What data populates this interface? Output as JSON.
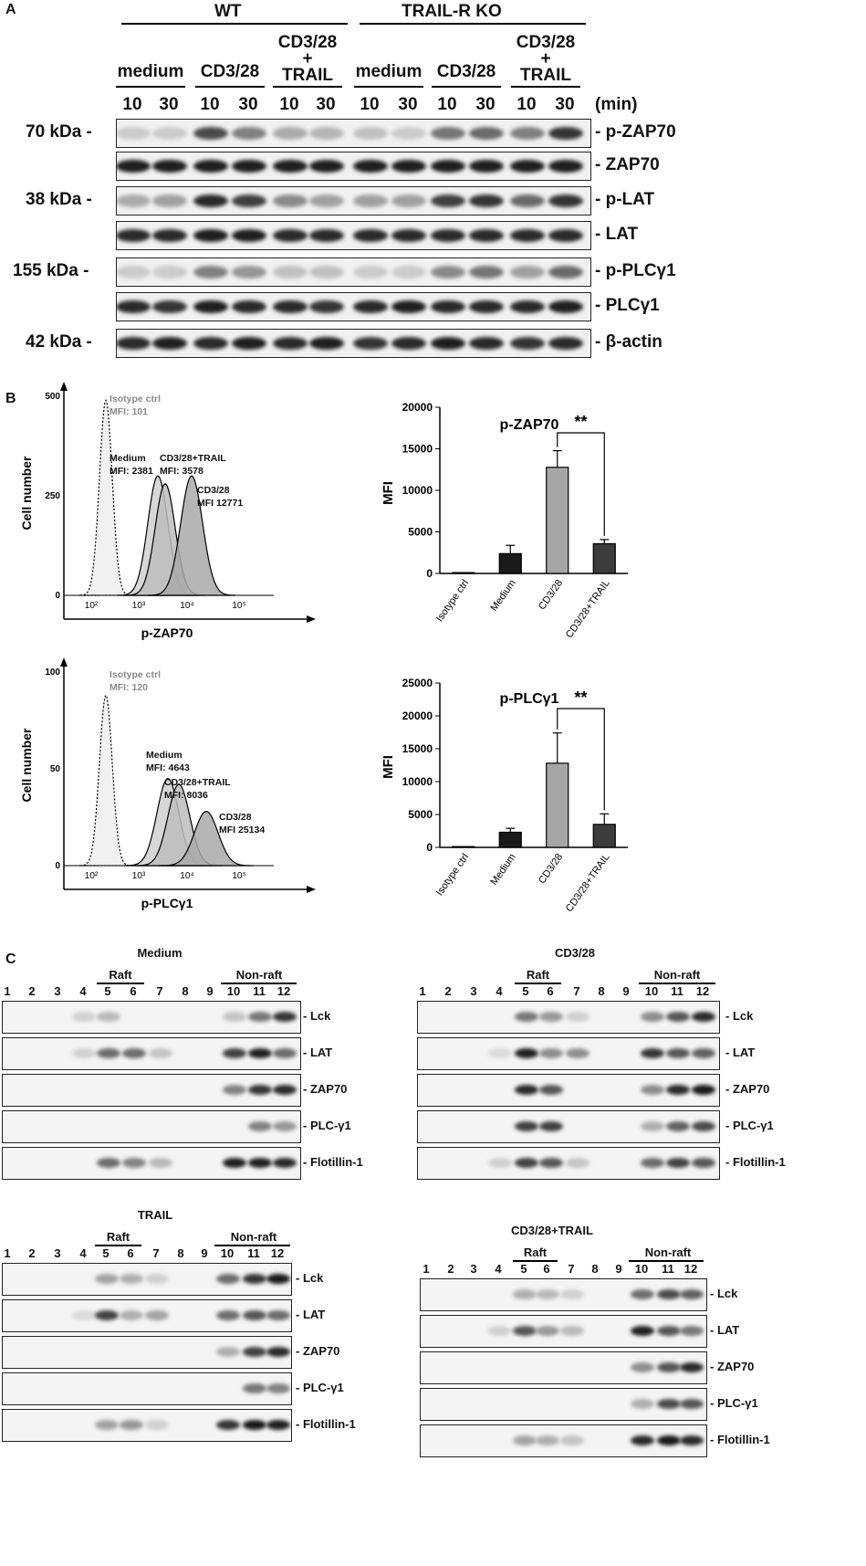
{
  "panel_a": {
    "letter": "A",
    "groups": [
      "WT",
      "TRAIL-R KO"
    ],
    "conditions": [
      "medium",
      "CD3/28",
      "CD3/28\n+\nTRAIL",
      "medium",
      "CD3/28",
      "CD3/28\n+\nTRAIL"
    ],
    "condition_lines": [
      [
        "medium"
      ],
      [
        "CD3/28"
      ],
      [
        "CD3/28",
        "+",
        "TRAIL"
      ],
      [
        "medium"
      ],
      [
        "CD3/28"
      ],
      [
        "CD3/28",
        "+",
        "TRAIL"
      ]
    ],
    "times": [
      "10",
      "30",
      "10",
      "30",
      "10",
      "30",
      "10",
      "30",
      "10",
      "30",
      "10",
      "30"
    ],
    "time_unit": "(min)",
    "blots": [
      {
        "label": "- p-ZAP70",
        "mw": "70 kDa -",
        "intensity": [
          0.15,
          0.15,
          0.75,
          0.5,
          0.3,
          0.25,
          0.2,
          0.15,
          0.55,
          0.6,
          0.5,
          0.85
        ]
      },
      {
        "label": "- ZAP70",
        "mw": "",
        "intensity": [
          0.95,
          0.95,
          0.95,
          0.95,
          0.95,
          0.95,
          0.95,
          0.95,
          0.95,
          0.95,
          0.95,
          0.95
        ]
      },
      {
        "label": "- p-LAT",
        "mw": "38 kDa -",
        "intensity": [
          0.3,
          0.35,
          0.9,
          0.8,
          0.45,
          0.35,
          0.35,
          0.35,
          0.8,
          0.85,
          0.6,
          0.85
        ]
      },
      {
        "label": "- LAT",
        "mw": "",
        "intensity": [
          0.9,
          0.9,
          0.95,
          0.95,
          0.9,
          0.9,
          0.9,
          0.9,
          0.9,
          0.9,
          0.9,
          0.9
        ]
      },
      {
        "label": "- p-PLCγ1",
        "mw": "155 kDa -",
        "intensity": [
          0.15,
          0.15,
          0.5,
          0.4,
          0.2,
          0.2,
          0.15,
          0.15,
          0.45,
          0.55,
          0.35,
          0.6
        ]
      },
      {
        "label": "- PLCγ1",
        "mw": "",
        "intensity": [
          0.9,
          0.85,
          0.95,
          0.9,
          0.9,
          0.85,
          0.9,
          0.95,
          0.9,
          0.9,
          0.9,
          0.95
        ]
      },
      {
        "label": "- β-actin",
        "mw": "42 kDa -",
        "intensity": [
          0.9,
          0.95,
          0.9,
          0.95,
          0.9,
          0.95,
          0.85,
          0.9,
          0.95,
          0.9,
          0.85,
          0.9
        ]
      }
    ]
  },
  "panel_b": {
    "letter": "B",
    "histograms": [
      {
        "xlabel": "p-ZAP70",
        "ylabel": "Cell number",
        "yticks": [
          "0",
          "250",
          "500"
        ],
        "xticks": [
          "10²",
          "10³",
          "10⁴",
          "10⁵"
        ],
        "annotations": [
          {
            "line1": "Isotype ctrl",
            "line2": "MFI: 101",
            "gray": true
          },
          {
            "line1": "Medium",
            "line2": "MFI: 2381",
            "gray": false
          },
          {
            "line1": "CD3/28+TRAIL",
            "line2": "MFI: 3578",
            "gray": false
          },
          {
            "line1": "CD3/28",
            "line2": "MFI 12771",
            "gray": false
          }
        ]
      },
      {
        "xlabel": "p-PLCγ1",
        "ylabel": "Cell number",
        "yticks": [
          "0",
          "50",
          "100"
        ],
        "xticks": [
          "10²",
          "10³",
          "10⁴",
          "10⁵"
        ],
        "annotations": [
          {
            "line1": "Isotype ctrl",
            "line2": "MFI: 120",
            "gray": true
          },
          {
            "line1": "Medium",
            "line2": "MFI: 4643",
            "gray": false
          },
          {
            "line1": "CD3/28+TRAIL",
            "line2": "MFI: 8036",
            "gray": false
          },
          {
            "line1": "CD3/28",
            "line2": "MFI 25134",
            "gray": false
          }
        ]
      }
    ]
  },
  "chart_data": [
    {
      "type": "bar",
      "title": "p-ZAP70",
      "ylabel": "MFI",
      "categories": [
        "Isotype ctrl",
        "Medium",
        "CD3/28",
        "CD3/28+TRAIL"
      ],
      "values": [
        101,
        2381,
        12771,
        3578
      ],
      "errors": [
        0,
        1000,
        2000,
        500
      ],
      "ylim": [
        0,
        20000
      ],
      "yticks": [
        0,
        5000,
        10000,
        15000,
        20000
      ],
      "bar_colors": [
        "#ffffff",
        "#1a1a1a",
        "#a6a6a6",
        "#3c3c3c"
      ],
      "significance": {
        "from": 2,
        "to": 3,
        "label": "**"
      }
    },
    {
      "type": "bar",
      "title": "p-PLCγ1",
      "ylabel": "MFI",
      "categories": [
        "Isotype ctrl",
        "Medium",
        "CD3/28",
        "CD3/28+TRAIL"
      ],
      "values": [
        120,
        2300,
        12800,
        3500
      ],
      "errors": [
        0,
        600,
        4600,
        1600
      ],
      "ylim": [
        0,
        25000
      ],
      "yticks": [
        0,
        5000,
        10000,
        15000,
        20000,
        25000
      ],
      "bar_colors": [
        "#ffffff",
        "#1a1a1a",
        "#a6a6a6",
        "#3c3c3c"
      ],
      "significance": {
        "from": 2,
        "to": 3,
        "label": "**"
      }
    }
  ],
  "panel_c": {
    "letter": "C",
    "fractions": [
      "1",
      "2",
      "3",
      "4",
      "5",
      "6",
      "7",
      "8",
      "9",
      "10",
      "11",
      "12"
    ],
    "raft_label": "Raft",
    "nonraft_label": "Non-raft",
    "proteins": [
      "- Lck",
      "- LAT",
      "- ZAP70",
      "- PLC-γ1",
      "- Flotillin-1"
    ],
    "blocks": [
      {
        "title": "Medium",
        "intensity": [
          [
            0,
            0,
            0,
            0.15,
            0.25,
            0,
            0,
            0,
            0,
            0.2,
            0.55,
            0.85
          ],
          [
            0,
            0,
            0,
            0.15,
            0.6,
            0.6,
            0.2,
            0,
            0,
            0.8,
            0.95,
            0.6
          ],
          [
            0,
            0,
            0,
            0,
            0,
            0,
            0,
            0,
            0,
            0.5,
            0.85,
            0.9
          ],
          [
            0,
            0,
            0,
            0,
            0,
            0,
            0,
            0,
            0,
            0,
            0.5,
            0.4
          ],
          [
            0,
            0,
            0,
            0,
            0.6,
            0.5,
            0.25,
            0,
            0,
            0.95,
            0.95,
            0.9
          ]
        ]
      },
      {
        "title": "CD3/28",
        "intensity": [
          [
            0,
            0,
            0,
            0,
            0.55,
            0.4,
            0.15,
            0,
            0,
            0.45,
            0.7,
            0.9
          ],
          [
            0,
            0,
            0,
            0.1,
            0.95,
            0.45,
            0.45,
            0,
            0,
            0.85,
            0.7,
            0.65
          ],
          [
            0,
            0,
            0,
            0,
            0.9,
            0.7,
            0,
            0,
            0,
            0.45,
            0.9,
            0.98
          ],
          [
            0,
            0,
            0,
            0,
            0.8,
            0.8,
            0,
            0,
            0,
            0.3,
            0.65,
            0.75
          ],
          [
            0,
            0,
            0,
            0.15,
            0.8,
            0.7,
            0.2,
            0,
            0,
            0.6,
            0.8,
            0.7
          ]
        ]
      },
      {
        "title": "TRAIL",
        "intensity": [
          [
            0,
            0,
            0,
            0,
            0.35,
            0.3,
            0.15,
            0,
            0,
            0.6,
            0.85,
            0.98
          ],
          [
            0,
            0,
            0,
            0.1,
            0.8,
            0.3,
            0.35,
            0,
            0,
            0.6,
            0.7,
            0.6
          ],
          [
            0,
            0,
            0,
            0,
            0,
            0,
            0,
            0,
            0,
            0.3,
            0.8,
            0.9
          ],
          [
            0,
            0,
            0,
            0,
            0,
            0,
            0,
            0,
            0,
            0,
            0.55,
            0.5
          ],
          [
            0,
            0,
            0,
            0,
            0.35,
            0.4,
            0.15,
            0,
            0,
            0.85,
            0.98,
            0.95
          ]
        ]
      },
      {
        "title": "CD3/28+TRAIL",
        "intensity": [
          [
            0,
            0,
            0,
            0,
            0.3,
            0.25,
            0.15,
            0,
            0,
            0.6,
            0.75,
            0.65
          ],
          [
            0,
            0,
            0,
            0.15,
            0.7,
            0.4,
            0.25,
            0,
            0,
            0.95,
            0.7,
            0.55
          ],
          [
            0,
            0,
            0,
            0,
            0,
            0,
            0,
            0,
            0,
            0.45,
            0.7,
            0.9
          ],
          [
            0,
            0,
            0,
            0,
            0,
            0,
            0,
            0,
            0,
            0.3,
            0.75,
            0.7
          ],
          [
            0,
            0,
            0,
            0,
            0.35,
            0.3,
            0.2,
            0,
            0,
            0.9,
            0.98,
            0.9
          ]
        ]
      }
    ]
  }
}
